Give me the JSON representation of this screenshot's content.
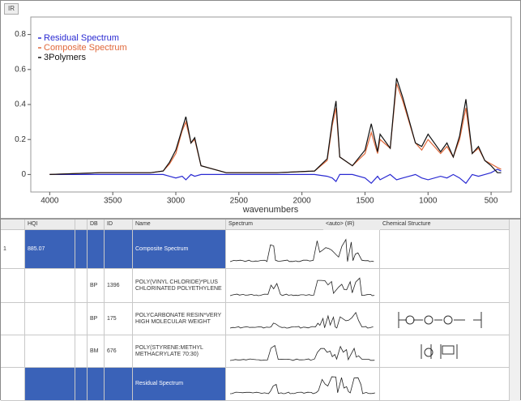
{
  "panel_label": "IR",
  "chart_data": {
    "type": "line",
    "x_label": "wavenumbers",
    "x": [
      4000,
      3600,
      3200,
      3100,
      3050,
      3000,
      2950,
      2920,
      2880,
      2850,
      2800,
      2600,
      2200,
      1900,
      1800,
      1760,
      1730,
      1700,
      1600,
      1500,
      1450,
      1400,
      1380,
      1300,
      1250,
      1200,
      1150,
      1100,
      1050,
      1000,
      900,
      850,
      800,
      750,
      700,
      650,
      600,
      550,
      500,
      450,
      420
    ],
    "series": [
      {
        "name": "Residual Spectrum",
        "color": "#2a2ad2",
        "values": [
          0,
          0,
          0,
          0,
          -0.01,
          -0.02,
          -0.01,
          -0.03,
          0,
          -0.01,
          0,
          0,
          0,
          0,
          -0.01,
          -0.02,
          -0.04,
          0,
          0,
          -0.02,
          -0.05,
          -0.01,
          -0.03,
          0,
          -0.03,
          -0.02,
          -0.01,
          0,
          -0.02,
          -0.03,
          -0.01,
          -0.02,
          0,
          -0.02,
          -0.05,
          0,
          -0.01,
          0,
          0.01,
          0.03,
          0.02
        ]
      },
      {
        "name": "Composite Spectrum",
        "color": "#e0683a",
        "values": [
          0,
          0.01,
          0.01,
          0.02,
          0.06,
          0.12,
          0.25,
          0.3,
          0.18,
          0.2,
          0.05,
          0.01,
          0.01,
          0.02,
          0.08,
          0.28,
          0.38,
          0.1,
          0.05,
          0.12,
          0.24,
          0.12,
          0.2,
          0.15,
          0.52,
          0.42,
          0.3,
          0.18,
          0.14,
          0.2,
          0.12,
          0.16,
          0.1,
          0.2,
          0.38,
          0.12,
          0.15,
          0.08,
          0.06,
          0.04,
          0.03
        ]
      },
      {
        "name": "3Polymers",
        "color": "#111111",
        "values": [
          0,
          0.01,
          0.01,
          0.02,
          0.07,
          0.14,
          0.26,
          0.33,
          0.18,
          0.21,
          0.05,
          0.01,
          0.01,
          0.02,
          0.09,
          0.3,
          0.42,
          0.1,
          0.05,
          0.14,
          0.29,
          0.13,
          0.23,
          0.15,
          0.55,
          0.44,
          0.31,
          0.18,
          0.16,
          0.23,
          0.13,
          0.18,
          0.1,
          0.22,
          0.43,
          0.12,
          0.16,
          0.08,
          0.05,
          0.01,
          0.01
        ]
      }
    ],
    "xlim": [
      4150,
      340
    ],
    "ylim": [
      -0.1,
      0.9
    ],
    "xticks": [
      4000,
      3500,
      3000,
      2500,
      2000,
      1500,
      1000,
      500
    ],
    "yticks": [
      0,
      0.2,
      0.4,
      0.6,
      0.8
    ]
  },
  "table": {
    "columns": {
      "hqi": "HQI",
      "db": "DB",
      "id": "ID",
      "name": "Name",
      "spectrum": "Spectrum",
      "range": "<auto> (IR)",
      "structure": "Chemical Structure"
    },
    "rows": [
      {
        "index": 1,
        "hqi": 885.07,
        "name": "Composite Spectrum"
      },
      {
        "db": "BP",
        "id": 1396,
        "name": "POLY(VINYL CHLORIDE)*PLUS CHLORINATED POLYETHYLENE"
      },
      {
        "db": "BP",
        "id": 175,
        "name": "POLYCARBONATE RESIN*VERY HIGH MOLECULAR WEIGHT"
      },
      {
        "db": "BM",
        "id": 676,
        "name": "POLY(STYRENE:METHYL METHACRYLATE 70:30)"
      },
      {
        "name": "Residual Spectrum"
      }
    ]
  }
}
